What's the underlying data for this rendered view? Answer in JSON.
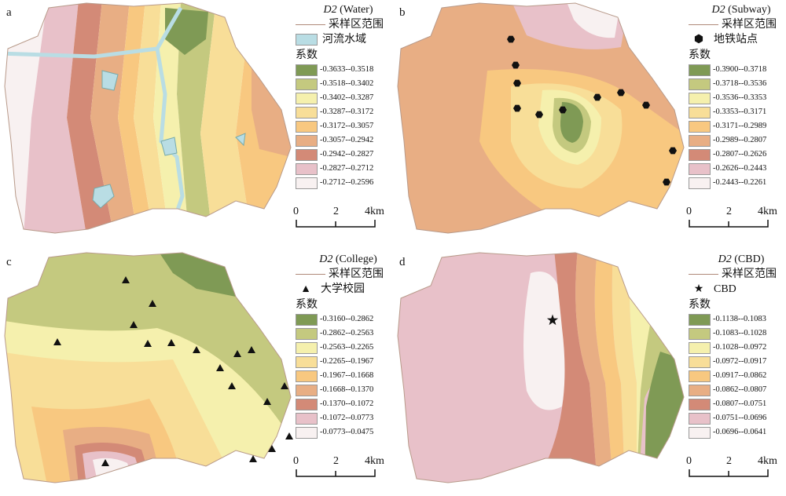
{
  "panels": [
    {
      "label": "a",
      "title_var": "D2",
      "title_rest": " (Water)",
      "boundary_label": "采样区范围",
      "feature_label": "河流水域",
      "feature_icon": "water-swatch-icon",
      "legend_heading": "系数",
      "classes": [
        "-0.3633--0.3518",
        "-0.3518--0.3402",
        "-0.3402--0.3287",
        "-0.3287--0.3172",
        "-0.3172--0.3057",
        "-0.3057--0.2942",
        "-0.2942--0.2827",
        "-0.2827--0.2712",
        "-0.2712--0.2596"
      ]
    },
    {
      "label": "b",
      "title_var": "D2",
      "title_rest": " (Subway)",
      "boundary_label": "采样区范围",
      "feature_label": "地铁站点",
      "feature_icon": "hexagon-icon",
      "legend_heading": "系数",
      "classes": [
        "-0.3900--0.3718",
        "-0.3718--0.3536",
        "-0.3536--0.3353",
        "-0.3353--0.3171",
        "-0.3171--0.2989",
        "-0.2989--0.2807",
        "-0.2807--0.2626",
        "-0.2626--0.2443",
        "-0.2443--0.2261"
      ]
    },
    {
      "label": "c",
      "title_var": "D2",
      "title_rest": " (College)",
      "boundary_label": "采样区范围",
      "feature_label": "大学校园",
      "feature_icon": "triangle-icon",
      "legend_heading": "系数",
      "classes": [
        "-0.3160--0.2862",
        "-0.2862--0.2563",
        "-0.2563--0.2265",
        "-0.2265--0.1967",
        "-0.1967--0.1668",
        "-0.1668--0.1370",
        "-0.1370--0.1072",
        "-0.1072--0.0773",
        "-0.0773--0.0475"
      ]
    },
    {
      "label": "d",
      "title_var": "D2",
      "title_rest": " (CBD)",
      "boundary_label": "采样区范围",
      "feature_label": "CBD",
      "feature_icon": "star-icon",
      "legend_heading": "系数",
      "classes": [
        "-0.1138--0.1083",
        "-0.1083--0.1028",
        "-0.1028--0.0972",
        "-0.0972--0.0917",
        "-0.0917--0.0862",
        "-0.0862--0.0807",
        "-0.0807--0.0751",
        "-0.0751--0.0696",
        "-0.0696--0.0641"
      ]
    }
  ],
  "class_colors": [
    "#7f9a55",
    "#c4c97f",
    "#f5f0ad",
    "#f8de98",
    "#f8c880",
    "#e8ae84",
    "#d38a77",
    "#e8c1c9",
    "#f8f1f1"
  ],
  "water_color": "#b9dde4",
  "scale_bar": {
    "ticks": [
      "0",
      "2",
      "4km"
    ]
  }
}
